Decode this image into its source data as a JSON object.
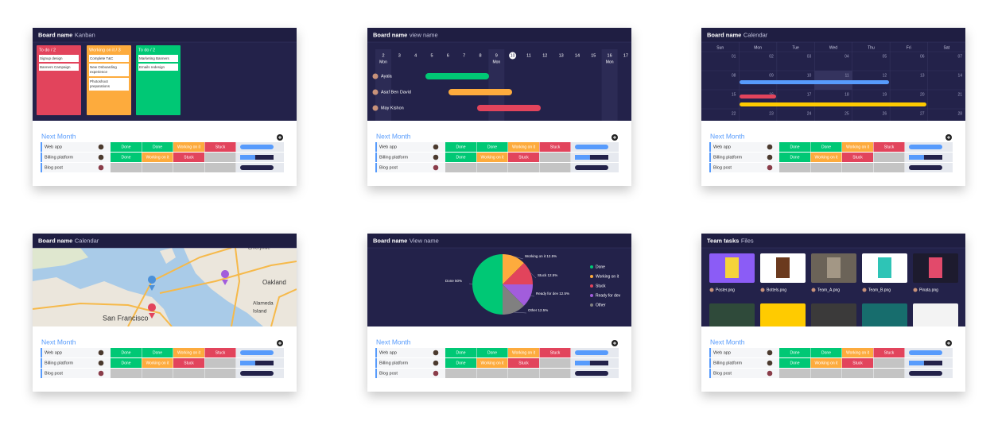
{
  "cards": [
    {
      "header": {
        "title": "Board name",
        "view": "Kanban"
      },
      "view": {
        "type": "kanban",
        "columns": [
          {
            "title": "To do / 2",
            "color": "#e2445c",
            "items": [
              "Signup design",
              "Banners Campaign"
            ]
          },
          {
            "title": "Working on it / 3",
            "color": "#fdab3d",
            "items": [
              "Complete T&C",
              "New Onboarding experience",
              "Photoshoot preparations"
            ]
          },
          {
            "title": "To do / 2",
            "color": "#00c875",
            "items": [
              "Marketing Banners",
              "Emails redesign"
            ]
          }
        ]
      },
      "table": {
        "title": "Next Month",
        "rows": [
          {
            "name": "Web app",
            "statuses": [
              {
                "label": "Done",
                "color": "#00c875"
              },
              {
                "label": "Done",
                "color": "#00c875"
              },
              {
                "label": "Working on it",
                "color": "#fdab3d"
              },
              {
                "label": "Stuck",
                "color": "#e2445c"
              }
            ]
          },
          {
            "name": "Billing platform",
            "statuses": [
              {
                "label": "Done",
                "color": "#00c875"
              },
              {
                "label": "Working on it",
                "color": "#fdab3d"
              },
              {
                "label": "Stuck",
                "color": "#e2445c"
              }
            ]
          },
          {
            "name": "Blog post",
            "statuses": []
          }
        ]
      }
    },
    {
      "header": {
        "title": "Board name",
        "view": "view name"
      },
      "view": {
        "type": "gantt",
        "days": [
          {
            "label": "2",
            "sub": "Mon"
          },
          {
            "label": "3"
          },
          {
            "label": "4"
          },
          {
            "label": "5"
          },
          {
            "label": "6"
          },
          {
            "label": "7"
          },
          {
            "label": "8"
          },
          {
            "label": "9",
            "sub": "Mon"
          },
          {
            "label": "10",
            "today": true
          },
          {
            "label": "11"
          },
          {
            "label": "12"
          },
          {
            "label": "13"
          },
          {
            "label": "14"
          },
          {
            "label": "15"
          },
          {
            "label": "16",
            "sub": "Mon"
          },
          {
            "label": "17"
          }
        ],
        "people": [
          {
            "name": "Ayala",
            "color": "#00c875"
          },
          {
            "name": "Asaf Ben David",
            "color": "#fdab3d"
          },
          {
            "name": "May Kishon",
            "color": "#e2445c"
          }
        ]
      },
      "table": {
        "title": "Next Month",
        "rows": [
          {
            "name": "Web app",
            "statuses": [
              {
                "label": "Done",
                "color": "#00c875"
              },
              {
                "label": "Done",
                "color": "#00c875"
              },
              {
                "label": "Working on it",
                "color": "#fdab3d"
              },
              {
                "label": "Stuck",
                "color": "#e2445c"
              }
            ]
          },
          {
            "name": "Billing platform",
            "statuses": [
              {
                "label": "Done",
                "color": "#00c875"
              },
              {
                "label": "Working on it",
                "color": "#fdab3d"
              },
              {
                "label": "Stuck",
                "color": "#e2445c"
              }
            ]
          },
          {
            "name": "Blog post",
            "statuses": []
          }
        ]
      }
    },
    {
      "header": {
        "title": "Board name",
        "view": "Calendar"
      },
      "view": {
        "type": "calendar",
        "weekdays": [
          "Sun",
          "Mon",
          "Tue",
          "Wed",
          "Thu",
          "Fri",
          "Sat"
        ],
        "weeks": [
          [
            "01",
            "02",
            "03",
            "04",
            "05",
            "06",
            "07"
          ],
          [
            "08",
            "09",
            "10",
            "11",
            "12",
            "13",
            "14"
          ],
          [
            "15",
            "16",
            "17",
            "18",
            "19",
            "20",
            "21"
          ],
          [
            "22",
            "23",
            "24",
            "25",
            "26",
            "27",
            "28"
          ]
        ]
      },
      "table": {
        "title": "Next Month",
        "rows": [
          {
            "name": "Web app",
            "statuses": [
              {
                "label": "Done",
                "color": "#00c875"
              },
              {
                "label": "Done",
                "color": "#00c875"
              },
              {
                "label": "Working on it",
                "color": "#fdab3d"
              },
              {
                "label": "Stuck",
                "color": "#e2445c"
              }
            ]
          },
          {
            "name": "Billing platform",
            "statuses": [
              {
                "label": "Done",
                "color": "#00c875"
              },
              {
                "label": "Working on it",
                "color": "#fdab3d"
              },
              {
                "label": "Stuck",
                "color": "#e2445c"
              }
            ]
          },
          {
            "name": "Blog post",
            "statuses": []
          }
        ]
      }
    },
    {
      "header": {
        "title": "Board name",
        "view": "Calendar"
      },
      "view": {
        "type": "map",
        "labels": [
          "Emeryville",
          "Oakland",
          "Alameda",
          "Island",
          "San Francisco"
        ]
      },
      "table": {
        "title": "Next Month",
        "rows": [
          {
            "name": "Web app",
            "statuses": [
              {
                "label": "Done",
                "color": "#00c875"
              },
              {
                "label": "Done",
                "color": "#00c875"
              },
              {
                "label": "Working on it",
                "color": "#fdab3d"
              },
              {
                "label": "Stuck",
                "color": "#e2445c"
              }
            ]
          },
          {
            "name": "Billing platform",
            "statuses": [
              {
                "label": "Done",
                "color": "#00c875"
              },
              {
                "label": "Working on it",
                "color": "#fdab3d"
              },
              {
                "label": "Stuck",
                "color": "#e2445c"
              }
            ]
          },
          {
            "name": "Blog post",
            "statuses": []
          }
        ]
      }
    },
    {
      "header": {
        "title": "Board name",
        "view": "View name"
      },
      "view": {
        "type": "pie",
        "slices": [
          {
            "value": 12.5,
            "label": "Working on it 12.5%",
            "color": "#fdab3d"
          },
          {
            "value": 12.5,
            "label": "Stuck 12.5%",
            "color": "#e2445c"
          },
          {
            "value": 12.5,
            "label": "Ready for dev 12.5%",
            "color": "#a25ddc"
          },
          {
            "value": 12.5,
            "label": "Other 12.5%",
            "color": "#808080"
          },
          {
            "value": 50,
            "label": "Done 50%",
            "color": "#00c875"
          }
        ],
        "legend": [
          {
            "name": "Done",
            "color": "#00c875"
          },
          {
            "name": "Working on it",
            "color": "#fdab3d"
          },
          {
            "name": "Stuck",
            "color": "#e2445c"
          },
          {
            "name": "Ready for dev",
            "color": "#a25ddc"
          },
          {
            "name": "Other",
            "color": "#808080"
          }
        ]
      },
      "table": {
        "title": "Next Month",
        "rows": [
          {
            "name": "Web app",
            "statuses": [
              {
                "label": "Done",
                "color": "#00c875"
              },
              {
                "label": "Done",
                "color": "#00c875"
              },
              {
                "label": "Working on it",
                "color": "#fdab3d"
              },
              {
                "label": "Stuck",
                "color": "#e2445c"
              }
            ]
          },
          {
            "name": "Billing platform",
            "statuses": [
              {
                "label": "Done",
                "color": "#00c875"
              },
              {
                "label": "Working on it",
                "color": "#fdab3d"
              },
              {
                "label": "Stuck",
                "color": "#e2445c"
              }
            ]
          },
          {
            "name": "Blog post",
            "statuses": []
          }
        ]
      }
    },
    {
      "header": {
        "title": "Team tasks",
        "view": "Files"
      },
      "view": {
        "type": "files",
        "files": [
          "Poster.png",
          "Bottels.png",
          "Team_A.png",
          "Team_B.png",
          "Pinata.png"
        ]
      },
      "table": {
        "title": "Next Month",
        "rows": [
          {
            "name": "Web app",
            "statuses": [
              {
                "label": "Done",
                "color": "#00c875"
              },
              {
                "label": "Done",
                "color": "#00c875"
              },
              {
                "label": "Working on it",
                "color": "#fdab3d"
              },
              {
                "label": "Stuck",
                "color": "#e2445c"
              }
            ]
          },
          {
            "name": "Billing platform",
            "statuses": [
              {
                "label": "Done",
                "color": "#00c875"
              },
              {
                "label": "Working on it",
                "color": "#fdab3d"
              },
              {
                "label": "Stuck",
                "color": "#e2445c"
              }
            ]
          },
          {
            "name": "Blog post",
            "statuses": []
          }
        ]
      }
    }
  ]
}
